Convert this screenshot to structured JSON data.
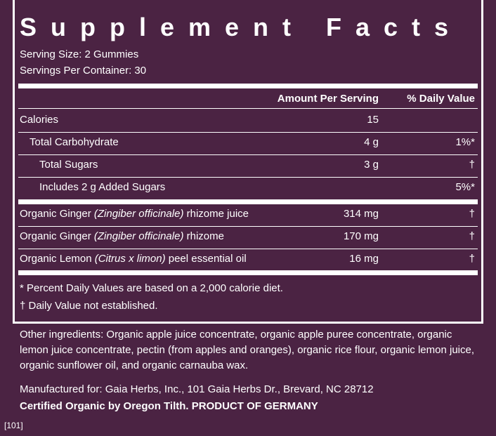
{
  "title": "Supplement Facts",
  "serving_size": "Serving Size: 2 Gummies",
  "servings_per_container": "Servings Per Container: 30",
  "header": {
    "amount": "Amount Per Serving",
    "dv": "% Daily Value"
  },
  "nutrients": [
    {
      "name": "Calories",
      "amount": "15"
    },
    {
      "name": "Total Carbohydrate",
      "amount": "4 g",
      "dv": "1%*"
    },
    {
      "name": "Total Sugars",
      "amount": "3 g",
      "dv": "†"
    },
    {
      "name": "Includes 2 g Added Sugars",
      "dv": "5%*"
    }
  ],
  "ingredients": [
    {
      "name": "Organic Ginger",
      "latin": "(Zingiber officinale)",
      "part": "rhizome juice",
      "amount": "314 mg",
      "dv": "†"
    },
    {
      "name": "Organic Ginger",
      "latin": "(Zingiber officinale)",
      "part": "rhizome",
      "amount": "170 mg",
      "dv": "†"
    },
    {
      "name": "Organic Lemon",
      "latin": "(Citrus x limon)",
      "part": "peel essential oil",
      "amount": "16 mg",
      "dv": "†"
    }
  ],
  "footnotes": [
    "* Percent Daily Values are based on a 2,000 calorie diet.",
    "† Daily Value not established."
  ],
  "other_ingredients": "Other ingredients: Organic apple juice concentrate, organic apple puree concentrate, organic lemon juice concentrate, pectin (from apples and oranges), organic rice flour, organic lemon juice, organic sunflower oil, and organic carnauba wax.",
  "manufacturer": "Manufactured for: Gaia Herbs, Inc., 101 Gaia Herbs Dr., Brevard, NC 28712",
  "certification": "Certified Organic by Oregon Tilth. PRODUCT OF GERMANY",
  "code": "[101]"
}
